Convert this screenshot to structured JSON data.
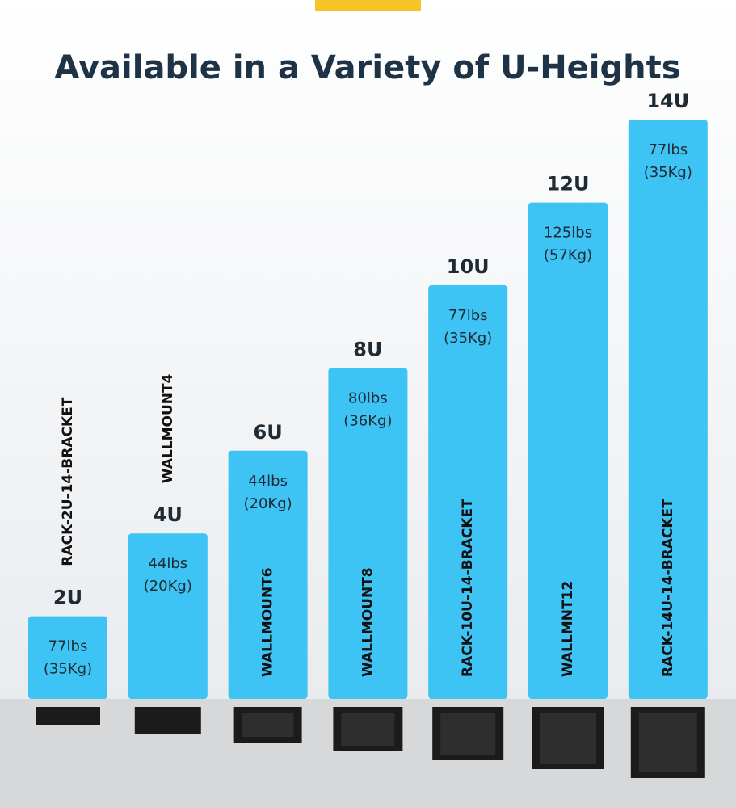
{
  "chart_data": {
    "type": "bar",
    "title": "Available in a Variety of U-Heights",
    "categories": [
      "2U",
      "4U",
      "6U",
      "8U",
      "10U",
      "12U",
      "14U"
    ],
    "values": [
      2,
      4,
      6,
      8,
      10,
      12,
      14
    ],
    "color": "#3dc3f4",
    "weight_labels": [
      "77lbs",
      "44lbs",
      "44lbs",
      "80lbs",
      "77lbs",
      "125lbs",
      "77lbs"
    ],
    "kg_labels": [
      "(35Kg)",
      "(20Kg)",
      "(20Kg)",
      "(36Kg)",
      "(35Kg)",
      "(57Kg)",
      "(35Kg)"
    ],
    "products": [
      "RACK-2U-14-BRACKET",
      "WALLMOUNT4",
      "WALLMOUNT6",
      "WALLMOUNT8",
      "RACK-10U-14-BRACKET",
      "WALLMNT12",
      "RACK-14U-14-BRACKET"
    ]
  }
}
